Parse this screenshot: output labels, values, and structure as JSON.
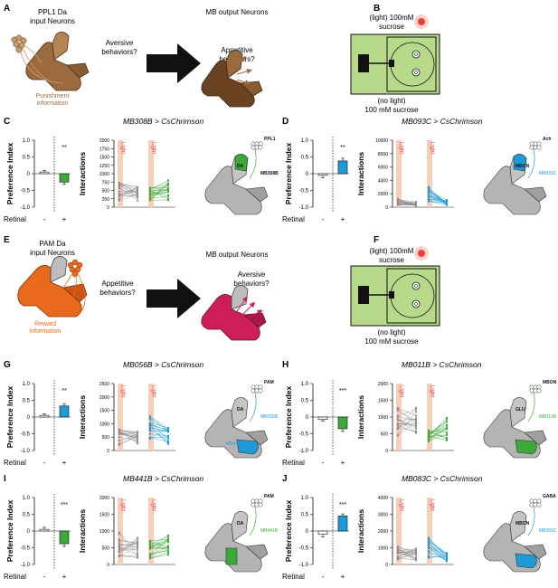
{
  "colors": {
    "green": "#3da93a",
    "blue": "#1f9ad6",
    "gray": "#8c8c8c",
    "light_pink": "#f7cdbb",
    "brown": "#9c6a3f",
    "orange": "#ea6a1d",
    "magenta": "#cc1f5a",
    "sucrose_green": "#b6d98a",
    "red_light": "#e8403a"
  },
  "panel_A": {
    "letter": "A",
    "left_label": [
      "PPL1 Da",
      "input Neurons"
    ],
    "right_label": "MB output Neurons",
    "question1": [
      "Aversive",
      "behaviors?"
    ],
    "question2": [
      "Appetitive",
      "behaviors?"
    ],
    "info": [
      "Punishment",
      "information"
    ]
  },
  "panel_B": {
    "letter": "B",
    "top": [
      "(light) 100mM",
      "sucrose"
    ],
    "bottom": [
      "(no light)",
      "100 mM sucrose"
    ]
  },
  "panel_E": {
    "letter": "E",
    "left_label": [
      "PAM Da",
      "input Neurons"
    ],
    "right_label": "MB output Neurons",
    "question1": [
      "Appetitive",
      "behaviors?"
    ],
    "question2": [
      "Aversive",
      "behaviors?"
    ],
    "info": [
      "Reward",
      "information"
    ]
  },
  "panel_F": {
    "letter": "F",
    "top": [
      "(light) 100mM",
      "sucrose"
    ],
    "bottom": [
      "(no light)",
      "100 mM sucrose"
    ]
  },
  "axes": {
    "pi_label": "Preference Index",
    "inter_label": "Interactions",
    "retinal_label": "Retinal",
    "minus": "-",
    "plus": "+",
    "light": "Light"
  },
  "chart_data": [
    {
      "panel": "C",
      "title": "MB308B > CsChrimson",
      "type": "bar",
      "categories": [
        "-",
        "+"
      ],
      "values": [
        0.05,
        -0.25
      ],
      "errors": [
        0.05,
        0.07
      ],
      "sig": "**",
      "ylim": [
        -1.0,
        1.0
      ],
      "bar_color": "#3da93a",
      "pair_ylim": [
        0,
        2000
      ],
      "pair_yticks": [
        0,
        250,
        500,
        750,
        1000,
        1250,
        1500,
        1750,
        2000
      ],
      "pair_color": "#3da93a",
      "pair_means": [
        [
          470,
          470
        ],
        [
          390,
          520
        ]
      ],
      "diagram": {
        "labels": [
          "PPL1",
          "DA",
          "MB308B"
        ]
      }
    },
    {
      "panel": "D",
      "title": "MB093C > CsChrimson",
      "type": "bar",
      "categories": [
        "-",
        "+"
      ],
      "values": [
        -0.05,
        0.38
      ],
      "errors": [
        0.07,
        0.08
      ],
      "sig": "**",
      "ylim": [
        -1.0,
        1.0
      ],
      "bar_color": "#1f9ad6",
      "pair_ylim": [
        0,
        10000
      ],
      "pair_yticks": [
        0,
        2000,
        4000,
        6000,
        8000,
        10000
      ],
      "pair_color": "#1f9ad6",
      "pair_means": [
        [
          800,
          500
        ],
        [
          1900,
          700
        ]
      ],
      "diagram": {
        "labels": [
          "Ach",
          "MBON",
          "MB093C"
        ]
      }
    },
    {
      "panel": "G",
      "title": "MB056B > CsChrimson",
      "type": "bar",
      "categories": [
        "-",
        "+"
      ],
      "values": [
        0.05,
        0.33
      ],
      "errors": [
        0.05,
        0.06
      ],
      "sig": "**",
      "ylim": [
        -1.0,
        1.0
      ],
      "bar_color": "#1f9ad6",
      "pair_ylim": [
        0,
        2500
      ],
      "pair_yticks": [
        0,
        500,
        1000,
        1500,
        2000,
        2500
      ],
      "pair_color": "#1f9ad6",
      "pair_means": [
        [
          500,
          450
        ],
        [
          800,
          550
        ]
      ],
      "diagram": {
        "labels": [
          "PAM",
          "DA",
          "MB056B",
          "MB441B"
        ]
      }
    },
    {
      "panel": "H",
      "title": "MB011B > CsChrimson",
      "type": "bar",
      "categories": [
        "-",
        "+"
      ],
      "values": [
        -0.07,
        -0.35
      ],
      "errors": [
        0.05,
        0.08
      ],
      "sig": "***",
      "ylim": [
        -1.0,
        1.0
      ],
      "bar_color": "#3da93a",
      "pair_ylim": [
        0,
        2000
      ],
      "pair_yticks": [
        0,
        500,
        1000,
        1500,
        2000
      ],
      "pair_color": "#3da93a",
      "pair_means": [
        [
          800,
          900
        ],
        [
          400,
          700
        ]
      ],
      "diagram": {
        "labels": [
          "MBON",
          "GLU",
          "MB011B"
        ]
      }
    },
    {
      "panel": "I",
      "title": "MB441B > CsChrimson",
      "type": "bar",
      "categories": [
        "-",
        "+"
      ],
      "values": [
        0.05,
        -0.38
      ],
      "errors": [
        0.06,
        0.08
      ],
      "sig": "***",
      "ylim": [
        -1.0,
        1.0
      ],
      "bar_color": "#3da93a",
      "pair_ylim": [
        0,
        2000
      ],
      "pair_yticks": [
        0,
        500,
        1000,
        1500,
        2000
      ],
      "pair_color": "#3da93a",
      "pair_means": [
        [
          600,
          500
        ],
        [
          450,
          600
        ]
      ],
      "diagram": {
        "labels": [
          "PAM",
          "DA",
          "MB441B"
        ]
      }
    },
    {
      "panel": "J",
      "title": "MB083C > CsChrimson",
      "type": "bar",
      "categories": [
        "-",
        "+"
      ],
      "values": [
        -0.1,
        0.45
      ],
      "errors": [
        0.07,
        0.06
      ],
      "sig": "***",
      "ylim": [
        -1.0,
        1.0
      ],
      "bar_color": "#1f9ad6",
      "pair_ylim": [
        0,
        4000
      ],
      "pair_yticks": [
        0,
        1000,
        2000,
        3000,
        4000
      ],
      "pair_color": "#1f9ad6",
      "pair_means": [
        [
          700,
          600
        ],
        [
          1000,
          450
        ]
      ],
      "diagram": {
        "labels": [
          "GABA",
          "MBON",
          "MB083C"
        ]
      }
    }
  ]
}
